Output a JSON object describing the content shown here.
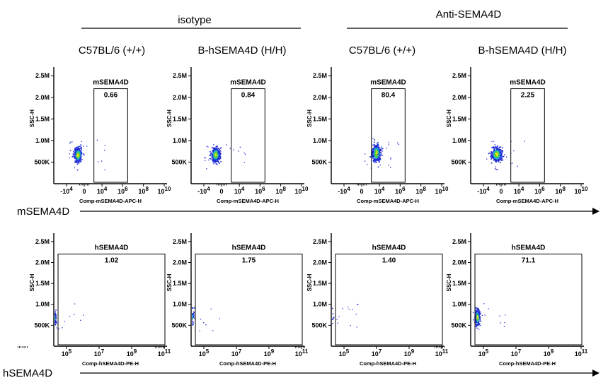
{
  "groups": [
    {
      "label": "isotype"
    },
    {
      "label": "Anti-SEMA4D"
    }
  ],
  "columns": [
    {
      "label": "C57BL/6 (+/+)"
    },
    {
      "label": "B-hSEMA4D (H/H)"
    },
    {
      "label": "C57BL/6 (+/+)"
    },
    {
      "label": "B-hSEMA4D (H/H)"
    }
  ],
  "row_markers": [
    {
      "label": "mSEMA4D"
    },
    {
      "label": "hSEMA4D"
    }
  ],
  "colors": {
    "axis": "#000000",
    "arrow": "#000000",
    "density_low": "#1f2bd6",
    "density_mid": "#21b5c9",
    "density_high": "#4cd23b",
    "density_peak": "#e6e21a"
  },
  "chart_data": [
    {
      "type": "scatter",
      "row": 0,
      "col": 0,
      "ylabel": "SSC-H",
      "xlabel": "Comp-mSEMA4D-APC-H",
      "y_ticks": [
        "2.5M",
        "2.0M",
        "1.5M",
        "1.0M",
        "500K"
      ],
      "y_tick_values": [
        2500000,
        2000000,
        1500000,
        1000000,
        500000
      ],
      "ylim": [
        0,
        2700000
      ],
      "x_ticks": [
        {
          "base": "-10",
          "exp": "4"
        },
        {
          "base": "0",
          "exp": ""
        },
        {
          "base": "10",
          "exp": "4"
        },
        {
          "base": "10",
          "exp": "6"
        },
        {
          "base": "10",
          "exp": "8"
        },
        {
          "base": "10",
          "exp": "10"
        }
      ],
      "x_tick_values": [
        -10000,
        0,
        10000,
        1000000,
        100000000,
        10000000000
      ],
      "gate": {
        "label": "mSEMA4D",
        "value": "0.66",
        "x_from": 1500,
        "x_to": 3000000,
        "y_from": 0,
        "y_to": 2200000
      },
      "population": {
        "x_center": -700,
        "y_center": 680000,
        "x_spread": 0.5,
        "y_spread": 80000,
        "n": 380
      }
    },
    {
      "type": "scatter",
      "row": 0,
      "col": 1,
      "ylabel": "SSC-H",
      "xlabel": "Comp-mSEMA4D-APC-H",
      "y_ticks": [
        "2.5M",
        "2.0M",
        "1.5M",
        "1.0M",
        "500K"
      ],
      "y_tick_values": [
        2500000,
        2000000,
        1500000,
        1000000,
        500000
      ],
      "ylim": [
        0,
        2700000
      ],
      "x_ticks": [
        {
          "base": "-10",
          "exp": "4"
        },
        {
          "base": "0",
          "exp": ""
        },
        {
          "base": "10",
          "exp": "4"
        },
        {
          "base": "10",
          "exp": "6"
        },
        {
          "base": "10",
          "exp": "8"
        },
        {
          "base": "10",
          "exp": "10"
        }
      ],
      "x_tick_values": [
        -10000,
        0,
        10000,
        1000000,
        100000000,
        10000000000
      ],
      "gate": {
        "label": "mSEMA4D",
        "value": "0.84",
        "x_from": 1500,
        "x_to": 3000000,
        "y_from": 0,
        "y_to": 2200000
      },
      "population": {
        "x_center": -600,
        "y_center": 680000,
        "x_spread": 0.55,
        "y_spread": 80000,
        "n": 380
      }
    },
    {
      "type": "scatter",
      "row": 0,
      "col": 2,
      "ylabel": "SSC-H",
      "xlabel": "Comp-mSEMA4D-APC-H",
      "y_ticks": [
        "2.5M",
        "2.0M",
        "1.5M",
        "1.0M",
        "500K"
      ],
      "y_tick_values": [
        2500000,
        2000000,
        1500000,
        1000000,
        500000
      ],
      "ylim": [
        0,
        2700000
      ],
      "x_ticks": [
        {
          "base": "-10",
          "exp": "4"
        },
        {
          "base": "0",
          "exp": ""
        },
        {
          "base": "10",
          "exp": "4"
        },
        {
          "base": "10",
          "exp": "6"
        },
        {
          "base": "10",
          "exp": "8"
        },
        {
          "base": "10",
          "exp": "10"
        }
      ],
      "x_tick_values": [
        -10000,
        0,
        10000,
        1000000,
        100000000,
        10000000000
      ],
      "gate": {
        "label": "mSEMA4D",
        "value": "80.4",
        "x_from": 1500,
        "x_to": 3000000,
        "y_from": 0,
        "y_to": 2200000
      },
      "population": {
        "x_center": 4500,
        "y_center": 720000,
        "x_spread": 0.55,
        "y_spread": 95000,
        "n": 380
      }
    },
    {
      "type": "scatter",
      "row": 0,
      "col": 3,
      "ylabel": "SSC-H",
      "xlabel": "Comp-mSEMA4D-APC-H",
      "y_ticks": [
        "2.5M",
        "2.0M",
        "1.5M",
        "1.0M",
        "500K"
      ],
      "y_tick_values": [
        2500000,
        2000000,
        1500000,
        1000000,
        500000
      ],
      "ylim": [
        0,
        2700000
      ],
      "x_ticks": [
        {
          "base": "-10",
          "exp": "4"
        },
        {
          "base": "0",
          "exp": ""
        },
        {
          "base": "10",
          "exp": "4"
        },
        {
          "base": "10",
          "exp": "6"
        },
        {
          "base": "10",
          "exp": "8"
        },
        {
          "base": "10",
          "exp": "10"
        }
      ],
      "x_tick_values": [
        -10000,
        0,
        10000,
        1000000,
        100000000,
        10000000000
      ],
      "gate": {
        "label": "mSEMA4D",
        "value": "2.25",
        "x_from": 1500,
        "x_to": 3000000,
        "y_from": 0,
        "y_to": 2200000
      },
      "population": {
        "x_center": -400,
        "y_center": 690000,
        "x_spread": 0.7,
        "y_spread": 80000,
        "n": 380
      }
    },
    {
      "type": "scatter",
      "row": 1,
      "col": 0,
      "ylabel": "SSC-H",
      "xlabel": "Comp-hSEMA4D-PE-H",
      "y_ticks": [
        "2.5M",
        "2.0M",
        "1.5M",
        "1.0M",
        "500K"
      ],
      "y_tick_values": [
        2500000,
        2000000,
        1500000,
        1000000,
        500000
      ],
      "ylim": [
        0,
        2700000
      ],
      "x_ticks": [
        {
          "base": "10",
          "exp": "5"
        },
        {
          "base": "10",
          "exp": "7"
        },
        {
          "base": "10",
          "exp": "9"
        },
        {
          "base": "10",
          "exp": "11"
        }
      ],
      "x_tick_values": [
        100000,
        10000000,
        1000000000,
        100000000000
      ],
      "gate": {
        "label": "hSEMA4D",
        "value": "1.02",
        "x_from": 30000,
        "x_to": 200000000000,
        "y_from": 0,
        "y_to": 2200000
      },
      "population": {
        "x_center": 15000,
        "y_center": 700000,
        "x_spread": 0.2,
        "y_spread": 90000,
        "n": 300
      }
    },
    {
      "type": "scatter",
      "row": 1,
      "col": 1,
      "ylabel": "SSC-H",
      "xlabel": "Comp-hSEMA4D-PE-H",
      "y_ticks": [
        "2.5M",
        "2.0M",
        "1.5M",
        "1.0M",
        "500K"
      ],
      "y_tick_values": [
        2500000,
        2000000,
        1500000,
        1000000,
        500000
      ],
      "ylim": [
        0,
        2700000
      ],
      "x_ticks": [
        {
          "base": "10",
          "exp": "5"
        },
        {
          "base": "10",
          "exp": "7"
        },
        {
          "base": "10",
          "exp": "9"
        },
        {
          "base": "10",
          "exp": "11"
        }
      ],
      "x_tick_values": [
        100000,
        10000000,
        1000000000,
        100000000000
      ],
      "gate": {
        "label": "hSEMA4D",
        "value": "1.75",
        "x_from": 30000,
        "x_to": 200000000000,
        "y_from": 0,
        "y_to": 2200000
      },
      "population": {
        "x_center": 15000,
        "y_center": 700000,
        "x_spread": 0.2,
        "y_spread": 90000,
        "n": 300
      }
    },
    {
      "type": "scatter",
      "row": 1,
      "col": 2,
      "ylabel": "SSC-H",
      "xlabel": "Comp-hSEMA4D-PE-H",
      "y_ticks": [
        "2.5M",
        "2.0M",
        "1.5M",
        "1.0M",
        "500K"
      ],
      "y_tick_values": [
        2500000,
        2000000,
        1500000,
        1000000,
        500000
      ],
      "ylim": [
        0,
        2700000
      ],
      "x_ticks": [
        {
          "base": "10",
          "exp": "5"
        },
        {
          "base": "10",
          "exp": "7"
        },
        {
          "base": "10",
          "exp": "9"
        },
        {
          "base": "10",
          "exp": "11"
        }
      ],
      "x_tick_values": [
        100000,
        10000000,
        1000000000,
        100000000000
      ],
      "gate": {
        "label": "hSEMA4D",
        "value": "1.40",
        "x_from": 30000,
        "x_to": 200000000000,
        "y_from": 0,
        "y_to": 2200000
      },
      "population": {
        "x_center": 12000,
        "y_center": 690000,
        "x_spread": 0.22,
        "y_spread": 85000,
        "n": 300
      }
    },
    {
      "type": "scatter",
      "row": 1,
      "col": 3,
      "ylabel": "SSC-H",
      "xlabel": "Comp-hSEMA4D-PE-H",
      "y_ticks": [
        "2.5M",
        "2.0M",
        "1.5M",
        "1.0M",
        "500K"
      ],
      "y_tick_values": [
        2500000,
        2000000,
        1500000,
        1000000,
        500000
      ],
      "ylim": [
        0,
        2700000
      ],
      "x_ticks": [
        {
          "base": "10",
          "exp": "5"
        },
        {
          "base": "10",
          "exp": "7"
        },
        {
          "base": "10",
          "exp": "9"
        },
        {
          "base": "10",
          "exp": "11"
        }
      ],
      "x_tick_values": [
        100000,
        10000000,
        1000000000,
        100000000000
      ],
      "gate": {
        "label": "hSEMA4D",
        "value": "71.1",
        "x_from": 30000,
        "x_to": 200000000000,
        "y_from": 0,
        "y_to": 2200000
      },
      "population": {
        "x_center": 40000,
        "y_center": 700000,
        "x_spread": 0.2,
        "y_spread": 90000,
        "n": 300
      }
    }
  ]
}
